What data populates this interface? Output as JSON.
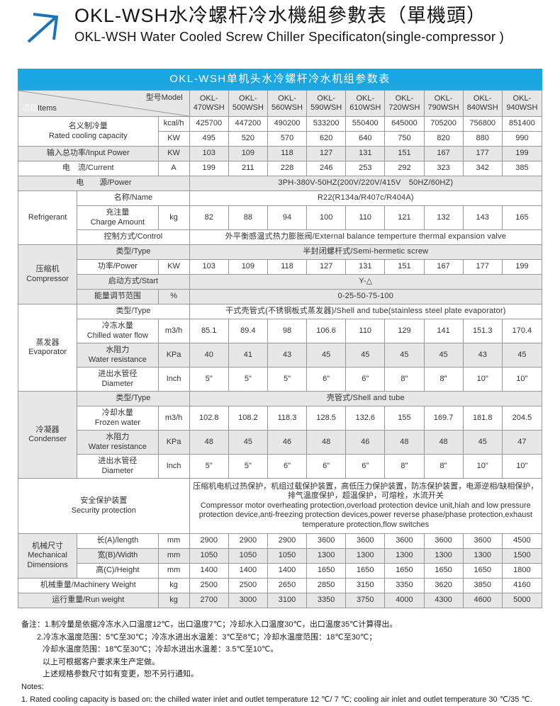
{
  "page": {
    "title_zh": "OKL-WSH水冷螺杆冷水機組參數表（單機頭）",
    "title_en": "OKL-WSH Water Cooled Screw Chiller Specificaton(single-compressor )",
    "banner": "OKL-WSH单机头水冷螺杆冷水机组参数表"
  },
  "colors": {
    "banner_bg": "#1aa7e1",
    "row_shade": "#e7e7e7",
    "border": "#979797",
    "arrow_blue": "#1b74b8"
  },
  "table": {
    "corner": {
      "items_zh": "项目",
      "items_en": "Items",
      "model_label": "型号Model"
    },
    "models": [
      "OKL-470WSH",
      "OKL-500WSH",
      "OKL-560WSH",
      "OKL-590WSH",
      "OKL-610WSH",
      "OKL-720WSH",
      "OKL-790WSH",
      "OKL-840WSH",
      "OKL-940WSH"
    ],
    "rows": [
      {
        "name": "row-rated-cooling-kcal",
        "h": "std",
        "shade": false,
        "label": {
          "lines": [
            "名义制冷量",
            "Rated cooling capacity"
          ],
          "colspan": 2,
          "rowspan": 2
        },
        "unit": "kcal/h",
        "values": [
          "425700",
          "447200",
          "490200",
          "533200",
          "550400",
          "645000",
          "705200",
          "756800",
          "851400"
        ]
      },
      {
        "name": "row-rated-cooling-kw",
        "h": "std",
        "shade": false,
        "unit": "KW",
        "values": [
          "495",
          "520",
          "570",
          "620",
          "640",
          "750",
          "820",
          "880",
          "990"
        ]
      },
      {
        "name": "row-input-power",
        "h": "std",
        "shade": true,
        "label": {
          "lines": [
            "输入总功率/Input Power"
          ],
          "colspan": 2
        },
        "unit": "KW",
        "values": [
          "103",
          "109",
          "118",
          "127",
          "131",
          "151",
          "167",
          "177",
          "199"
        ]
      },
      {
        "name": "row-current",
        "h": "std",
        "shade": false,
        "label": {
          "lines": [
            "电　流/Current"
          ],
          "colspan": 2
        },
        "unit": "A",
        "values": [
          "199",
          "211",
          "228",
          "246",
          "253",
          "292",
          "323",
          "342",
          "385"
        ]
      },
      {
        "name": "row-power-supply",
        "h": "std",
        "shade": true,
        "label": {
          "lines": [
            "电　　源/Power"
          ],
          "colspan": 3
        },
        "span": "3PH-380V-50HZ(200V/220V/415V　50HZ/60HZ)"
      },
      {
        "name": "row-refrigerant-name",
        "h": "std",
        "shade": false,
        "group": {
          "lines": [
            "Refrigerant"
          ],
          "rowspan": 3,
          "shade": false,
          "name": "group-refrigerant"
        },
        "label": {
          "lines": [
            "名称/Name"
          ],
          "colspan": 2
        },
        "span": "R22(R134a/R407c/R404A)"
      },
      {
        "name": "row-charge-amount",
        "h": "tall",
        "shade": false,
        "label": {
          "lines": [
            "充注量",
            "Charge Amount"
          ]
        },
        "unit": "kg",
        "values": [
          "82",
          "88",
          "94",
          "100",
          "110",
          "121",
          "132",
          "143",
          "165"
        ]
      },
      {
        "name": "row-control",
        "h": "std",
        "shade": false,
        "label": {
          "lines": [
            "控制方式/Control"
          ],
          "colspan": 2
        },
        "span": "外平衡感温式热力膨胀阀/External balance temperture thermal expansion valve"
      },
      {
        "name": "row-comp-type",
        "h": "std",
        "shade": true,
        "group": {
          "lines": [
            "压缩机",
            "Compressor"
          ],
          "rowspan": 4,
          "shade": true,
          "name": "group-compressor"
        },
        "label": {
          "lines": [
            "类型/Type"
          ],
          "colspan": 2
        },
        "span": "半封闭螺杆式/Semi-hermetic screw"
      },
      {
        "name": "row-comp-power",
        "h": "std",
        "shade": false,
        "label": {
          "lines": [
            "功率/Power"
          ]
        },
        "unit": "KW",
        "values": [
          "103",
          "109",
          "118",
          "127",
          "131",
          "151",
          "167",
          "177",
          "199"
        ]
      },
      {
        "name": "row-comp-start",
        "h": "std",
        "shade": true,
        "label": {
          "lines": [
            "启动方式/Start"
          ],
          "colspan": 2
        },
        "span": "Y-△"
      },
      {
        "name": "row-energy-range",
        "h": "std",
        "shade": true,
        "label": {
          "lines": [
            "能量调节范围"
          ]
        },
        "unit": "%",
        "span": "0-25-50-75-100"
      },
      {
        "name": "row-evap-type",
        "h": "std",
        "shade": false,
        "group": {
          "lines": [
            "蒸发器",
            "Evaporator"
          ],
          "rowspan": 4,
          "shade": false,
          "name": "group-evaporator"
        },
        "label": {
          "lines": [
            "类型/Type"
          ],
          "colspan": 2
        },
        "span": "干式壳管式(不锈钢板式蒸发器)/Shell and tube(stainless steel plate evaporator)"
      },
      {
        "name": "row-chilled-flow",
        "h": "tall",
        "shade": false,
        "label": {
          "lines": [
            "冷冻水量",
            "Chilled water flow"
          ]
        },
        "unit": "m3/h",
        "values": [
          "85.1",
          "89.4",
          "98",
          "106.6",
          "110",
          "129",
          "141",
          "151.3",
          "170.4"
        ]
      },
      {
        "name": "row-evap-resistance",
        "h": "tall",
        "shade": true,
        "label": {
          "lines": [
            "水阻力",
            "Water resistance"
          ]
        },
        "unit": "KPa",
        "values": [
          "40",
          "41",
          "43",
          "45",
          "45",
          "45",
          "45",
          "43",
          "45"
        ]
      },
      {
        "name": "row-evap-diameter",
        "h": "tall",
        "shade": false,
        "label": {
          "lines": [
            "进出水管径",
            "Diameter"
          ]
        },
        "unit": "Inch",
        "values": [
          "5\"",
          "5\"",
          "5\"",
          "6\"",
          "6\"",
          "8\"",
          "8\"",
          "10\"",
          "10\""
        ]
      },
      {
        "name": "row-cond-type",
        "h": "std",
        "shade": true,
        "group": {
          "lines": [
            "冷凝器",
            "Condenser"
          ],
          "rowspan": 4,
          "shade": true,
          "name": "group-condenser"
        },
        "label": {
          "lines": [
            "类型/Type"
          ],
          "colspan": 2
        },
        "span": "壳管式/Shell and tube"
      },
      {
        "name": "row-frozen-water",
        "h": "tall",
        "shade": false,
        "label": {
          "lines": [
            "冷却水量",
            "Frozen water"
          ]
        },
        "unit": "m3/h",
        "values": [
          "102.8",
          "108.2",
          "118.3",
          "128.5",
          "132.6",
          "155",
          "169.7",
          "181.8",
          "204.5"
        ]
      },
      {
        "name": "row-cond-resistance",
        "h": "tall",
        "shade": true,
        "label": {
          "lines": [
            "水阻力",
            "Water resistance"
          ]
        },
        "unit": "KPa",
        "values": [
          "48",
          "45",
          "46",
          "48",
          "46",
          "48",
          "48",
          "45",
          "47"
        ]
      },
      {
        "name": "row-cond-diameter",
        "h": "tall",
        "shade": false,
        "label": {
          "lines": [
            "进出水管径",
            "Diameter"
          ]
        },
        "unit": "Inch",
        "values": [
          "5\"",
          "5\"",
          "6\"",
          "6\"",
          "6\"",
          "8\"",
          "8\"",
          "10\"",
          "10\""
        ]
      },
      {
        "name": "row-security",
        "h": "big",
        "shade": false,
        "label": {
          "lines": [
            "安全保护装置",
            "Security protection"
          ],
          "colspan": 3
        },
        "span_lines": [
          "压缩机电机过热保护，机组过载保护装置，高低压力保护装置，防冻保护装置，电源逆相/缺相保护，排气温度保护，超温保护，可熔栓，水流开关",
          "Compressor motor overheating protection,overload protection device unit,hiah and low pressure protection device,anti-freezing protection devices,power reverse phase/phase protection,exhaust temperature protection,flow switches"
        ]
      },
      {
        "name": "row-length",
        "h": "std",
        "shade": false,
        "group": {
          "lines": [
            "机械尺寸",
            "Mechanical",
            "Dimensions"
          ],
          "rowspan": 3,
          "shade": true,
          "name": "group-mechanical-dimensions"
        },
        "label": {
          "lines": [
            "长(A)/length"
          ]
        },
        "unit": "mm",
        "values": [
          "2900",
          "2900",
          "2900",
          "3600",
          "3600",
          "3600",
          "3600",
          "3600",
          "4500"
        ]
      },
      {
        "name": "row-width",
        "h": "std",
        "shade": true,
        "label": {
          "lines": [
            "宽(B)/Width"
          ]
        },
        "unit": "mm",
        "values": [
          "1050",
          "1050",
          "1050",
          "1300",
          "1300",
          "1300",
          "1300",
          "1300",
          "1500"
        ]
      },
      {
        "name": "row-height",
        "h": "std",
        "shade": false,
        "label": {
          "lines": [
            "高(C)/Height"
          ]
        },
        "unit": "mm",
        "values": [
          "1400",
          "1400",
          "1400",
          "1650",
          "1650",
          "1650",
          "1650",
          "1650",
          "1800"
        ]
      },
      {
        "name": "row-machinery-weight",
        "h": "std",
        "shade": false,
        "label": {
          "lines": [
            "机械重量/Machinery Weight"
          ],
          "colspan": 2
        },
        "unit": "kg",
        "values": [
          "2500",
          "2500",
          "2650",
          "2850",
          "3150",
          "3350",
          "3620",
          "3850",
          "4160"
        ]
      },
      {
        "name": "row-run-weight",
        "h": "std",
        "shade": true,
        "label": {
          "lines": [
            "运行重量/Run weight"
          ],
          "colspan": 2
        },
        "unit": "kg",
        "values": [
          "2700",
          "3000",
          "3100",
          "3350",
          "3750",
          "4000",
          "4300",
          "4600",
          "5000"
        ]
      }
    ]
  },
  "notes": {
    "lines": [
      "备注：1.制冷量是依据冷冻水入口温度12℃，出口温度7℃；冷却水入口温度30℃，出口温度35℃计算得出。",
      "2.冷冻水温度范围：5℃至30℃；冷冻水进出水温差：3℃至8℃；冷却水温度范围：18℃至30℃；",
      "冷却水温度范围：18℃至30℃；冷却水进出水温差：3.5℃至10℃。",
      "以上可根据客户要求来生产定做。",
      "上述规格参数尺寸如有变更，恕不另行通知。",
      "Notes:",
      "1. Rated cooling capacity is based on: the chilled water inlet and outlet temperature 12 ℃/ 7 ℃; cooling air inlet and outlet temperature 30 ℃/35 ℃."
    ]
  }
}
